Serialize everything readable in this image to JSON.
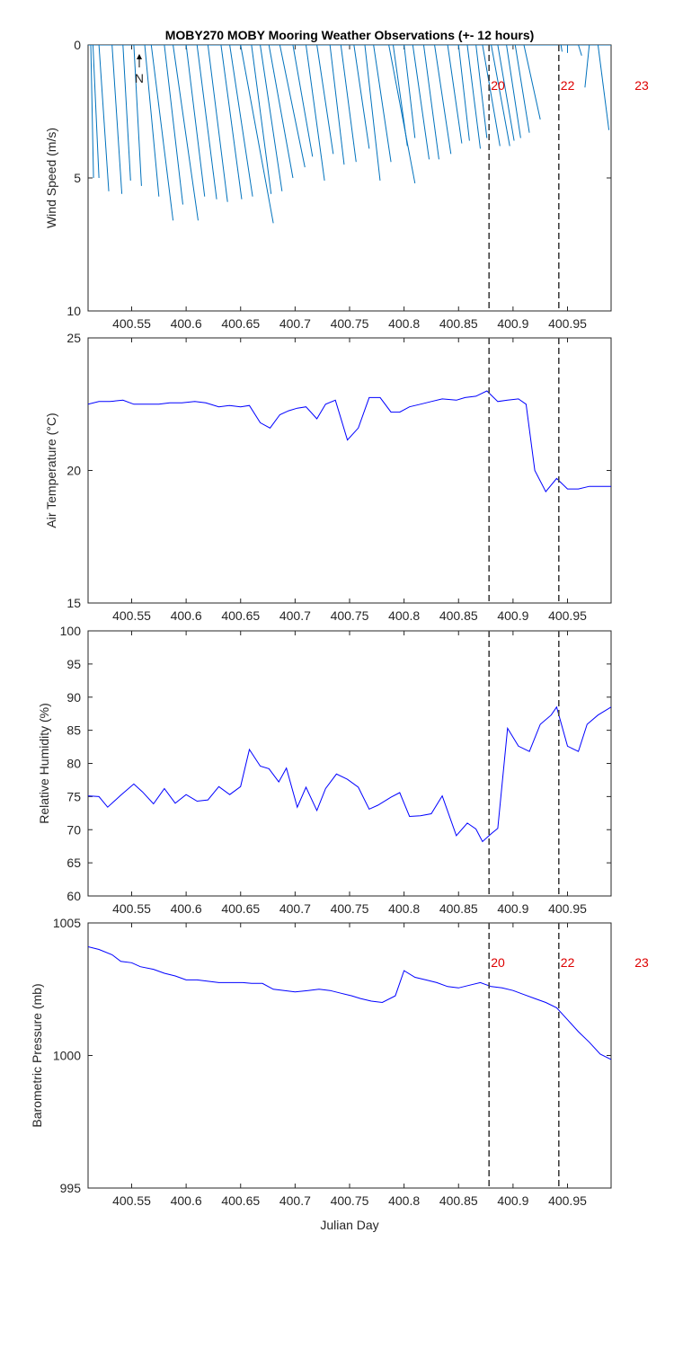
{
  "title": "MOBY270 MOBY Mooring Weather Observations (+- 12 hours)",
  "xlabel": "Julian Day",
  "north_label": "N",
  "colors": {
    "wind": "#0072bd",
    "line": "#0000ff",
    "marker": "#404040",
    "hour": "#dd0000"
  },
  "chart_data": [
    {
      "type": "line",
      "subtype": "wind-stick",
      "ylabel": "Wind Speed (m/s)",
      "ylim": [
        0,
        10
      ],
      "y_reversed": true,
      "xlim": [
        400.51,
        400.99
      ],
      "xticks": [
        400.55,
        400.6,
        400.65,
        400.7,
        400.75,
        400.8,
        400.85,
        400.9,
        400.95
      ],
      "yticks": [
        0,
        5,
        10
      ],
      "sticks": [
        {
          "x": 400.5125,
          "tip_x": 400.515,
          "tip_y": 5.0
        },
        {
          "x": 400.5145,
          "tip_x": 400.52,
          "tip_y": 5.0
        },
        {
          "x": 400.52,
          "tip_x": 400.529,
          "tip_y": 5.5
        },
        {
          "x": 400.532,
          "tip_x": 400.541,
          "tip_y": 5.6
        },
        {
          "x": 400.542,
          "tip_x": 400.549,
          "tip_y": 5.1
        },
        {
          "x": 400.552,
          "tip_x": 400.559,
          "tip_y": 5.3
        },
        {
          "x": 400.562,
          "tip_x": 400.575,
          "tip_y": 5.7
        },
        {
          "x": 400.568,
          "tip_x": 400.588,
          "tip_y": 6.6
        },
        {
          "x": 400.58,
          "tip_x": 400.597,
          "tip_y": 6.0
        },
        {
          "x": 400.588,
          "tip_x": 400.611,
          "tip_y": 6.6
        },
        {
          "x": 400.6,
          "tip_x": 400.617,
          "tip_y": 5.7
        },
        {
          "x": 400.61,
          "tip_x": 400.628,
          "tip_y": 5.8
        },
        {
          "x": 400.62,
          "tip_x": 400.638,
          "tip_y": 5.9
        },
        {
          "x": 400.632,
          "tip_x": 400.651,
          "tip_y": 5.8
        },
        {
          "x": 400.64,
          "tip_x": 400.661,
          "tip_y": 5.7
        },
        {
          "x": 400.65,
          "tip_x": 400.68,
          "tip_y": 6.7
        },
        {
          "x": 400.66,
          "tip_x": 400.678,
          "tip_y": 5.6
        },
        {
          "x": 400.668,
          "tip_x": 400.688,
          "tip_y": 5.5
        },
        {
          "x": 400.676,
          "tip_x": 400.698,
          "tip_y": 5.0
        },
        {
          "x": 400.686,
          "tip_x": 400.709,
          "tip_y": 4.6
        },
        {
          "x": 400.698,
          "tip_x": 400.716,
          "tip_y": 4.2
        },
        {
          "x": 400.71,
          "tip_x": 400.727,
          "tip_y": 5.1
        },
        {
          "x": 400.72,
          "tip_x": 400.735,
          "tip_y": 4.1
        },
        {
          "x": 400.732,
          "tip_x": 400.745,
          "tip_y": 4.5
        },
        {
          "x": 400.742,
          "tip_x": 400.756,
          "tip_y": 4.4
        },
        {
          "x": 400.754,
          "tip_x": 400.768,
          "tip_y": 3.9
        },
        {
          "x": 400.764,
          "tip_x": 400.778,
          "tip_y": 5.1
        },
        {
          "x": 400.772,
          "tip_x": 400.788,
          "tip_y": 4.4
        },
        {
          "x": 400.786,
          "tip_x": 400.81,
          "tip_y": 5.2
        },
        {
          "x": 400.79,
          "tip_x": 400.803,
          "tip_y": 3.8
        },
        {
          "x": 400.8,
          "tip_x": 400.81,
          "tip_y": 3.5
        },
        {
          "x": 400.808,
          "tip_x": 400.823,
          "tip_y": 4.3
        },
        {
          "x": 400.818,
          "tip_x": 400.832,
          "tip_y": 4.3
        },
        {
          "x": 400.828,
          "tip_x": 400.843,
          "tip_y": 4.1
        },
        {
          "x": 400.84,
          "tip_x": 400.853,
          "tip_y": 3.7
        },
        {
          "x": 400.85,
          "tip_x": 400.86,
          "tip_y": 3.6
        },
        {
          "x": 400.858,
          "tip_x": 400.87,
          "tip_y": 3.9
        },
        {
          "x": 400.866,
          "tip_x": 400.876,
          "tip_y": 3.5
        },
        {
          "x": 400.872,
          "tip_x": 400.888,
          "tip_y": 3.8
        },
        {
          "x": 400.88,
          "tip_x": 400.897,
          "tip_y": 3.8
        },
        {
          "x": 400.886,
          "tip_x": 400.901,
          "tip_y": 3.6
        },
        {
          "x": 400.894,
          "tip_x": 400.907,
          "tip_y": 3.5
        },
        {
          "x": 400.902,
          "tip_x": 400.915,
          "tip_y": 3.3
        },
        {
          "x": 400.91,
          "tip_x": 400.925,
          "tip_y": 2.8
        },
        {
          "x": 400.944,
          "tip_x": 400.945,
          "tip_y": 0.25
        },
        {
          "x": 400.95,
          "tip_x": 400.95,
          "tip_y": 0.3
        },
        {
          "x": 400.96,
          "tip_x": 400.963,
          "tip_y": 0.4
        },
        {
          "x": 400.97,
          "tip_x": 400.966,
          "tip_y": 1.6
        },
        {
          "x": 400.978,
          "tip_x": 400.988,
          "tip_y": 3.2
        }
      ],
      "north_arrow_x": 400.557,
      "markers": [
        400.878,
        400.942
      ],
      "hour_labels": [
        {
          "x": 400.878,
          "text": "20"
        },
        {
          "x": 400.942,
          "text": "22"
        },
        {
          "x": 401.01,
          "text": "23"
        }
      ]
    },
    {
      "type": "line",
      "ylabel": "Air Temperature (°C)",
      "ylim": [
        15,
        25
      ],
      "y_reversed": false,
      "xlim": [
        400.51,
        400.99
      ],
      "xticks": [
        400.55,
        400.6,
        400.65,
        400.7,
        400.75,
        400.8,
        400.85,
        400.9,
        400.95
      ],
      "yticks": [
        15,
        20,
        25
      ],
      "x": [
        400.51,
        400.52,
        400.53,
        400.542,
        400.552,
        400.564,
        400.575,
        400.585,
        400.596,
        400.608,
        400.618,
        400.63,
        400.64,
        400.65,
        400.658,
        400.668,
        400.677,
        400.686,
        400.694,
        400.702,
        400.71,
        400.72,
        400.728,
        400.737,
        400.748,
        400.758,
        400.768,
        400.778,
        400.788,
        400.796,
        400.805,
        400.815,
        400.825,
        400.835,
        400.848,
        400.856,
        400.866,
        400.876,
        400.886,
        400.895,
        400.905,
        400.912,
        400.92,
        400.93,
        400.94,
        400.95,
        400.96,
        400.97,
        400.98,
        400.99
      ],
      "y": [
        22.5,
        22.6,
        22.6,
        22.65,
        22.5,
        22.5,
        22.5,
        22.55,
        22.55,
        22.6,
        22.55,
        22.4,
        22.45,
        22.4,
        22.45,
        21.8,
        21.6,
        22.1,
        22.25,
        22.35,
        22.4,
        21.95,
        22.5,
        22.65,
        21.15,
        21.6,
        22.75,
        22.75,
        22.2,
        22.2,
        22.4,
        22.5,
        22.6,
        22.7,
        22.65,
        22.75,
        22.8,
        23.0,
        22.6,
        22.65,
        22.7,
        22.5,
        20.0,
        19.2,
        19.7,
        19.3,
        19.3,
        19.4,
        19.4,
        19.4
      ],
      "markers": [
        400.878,
        400.942
      ]
    },
    {
      "type": "line",
      "ylabel": "Relative Humidity (%)",
      "ylim": [
        60,
        100
      ],
      "y_reversed": false,
      "xlim": [
        400.51,
        400.99
      ],
      "xticks": [
        400.55,
        400.6,
        400.65,
        400.7,
        400.75,
        400.8,
        400.85,
        400.9,
        400.95
      ],
      "yticks": [
        60,
        65,
        70,
        75,
        80,
        85,
        90,
        95,
        100
      ],
      "x": [
        400.51,
        400.52,
        400.528,
        400.54,
        400.552,
        400.56,
        400.57,
        400.58,
        400.59,
        400.6,
        400.61,
        400.62,
        400.63,
        400.64,
        400.65,
        400.658,
        400.668,
        400.676,
        400.685,
        400.692,
        400.702,
        400.71,
        400.72,
        400.728,
        400.738,
        400.748,
        400.758,
        400.768,
        400.776,
        400.788,
        400.796,
        400.805,
        400.815,
        400.825,
        400.835,
        400.848,
        400.858,
        400.866,
        400.872,
        400.88,
        400.886,
        400.895,
        400.905,
        400.915,
        400.925,
        400.935,
        400.94,
        400.95,
        400.96,
        400.968,
        400.978,
        400.99
      ],
      "y": [
        75.1,
        75.0,
        73.4,
        75.2,
        76.9,
        75.7,
        73.9,
        76.2,
        74.0,
        75.3,
        74.3,
        74.5,
        76.5,
        75.3,
        76.5,
        82.1,
        79.6,
        79.2,
        77.2,
        79.3,
        73.4,
        76.4,
        72.9,
        76.2,
        78.4,
        77.6,
        76.4,
        73.1,
        73.7,
        74.9,
        75.6,
        72.0,
        72.1,
        72.4,
        75.1,
        69.1,
        71.0,
        70.1,
        68.2,
        69.4,
        70.2,
        85.3,
        82.6,
        81.8,
        85.9,
        87.3,
        88.5,
        82.6,
        81.8,
        85.9,
        87.3,
        88.5
      ],
      "markers": [
        400.878,
        400.942
      ]
    },
    {
      "type": "line",
      "ylabel": "Barometric Pressure (mb)",
      "ylim": [
        995,
        1005
      ],
      "y_reversed": false,
      "xlim": [
        400.51,
        400.99
      ],
      "xticks": [
        400.55,
        400.6,
        400.65,
        400.7,
        400.75,
        400.8,
        400.85,
        400.9,
        400.95
      ],
      "yticks": [
        995,
        1000,
        1005
      ],
      "x": [
        400.51,
        400.52,
        400.532,
        400.54,
        400.55,
        400.558,
        400.57,
        400.58,
        400.59,
        400.6,
        400.61,
        400.62,
        400.63,
        400.64,
        400.652,
        400.66,
        400.67,
        400.68,
        400.69,
        400.7,
        400.712,
        400.722,
        400.732,
        400.742,
        400.752,
        400.76,
        400.77,
        400.78,
        400.792,
        400.8,
        400.81,
        400.82,
        400.83,
        400.84,
        400.85,
        400.86,
        400.87,
        400.88,
        400.89,
        400.9,
        400.91,
        400.92,
        400.93,
        400.94,
        400.95,
        400.96,
        400.97,
        400.98,
        400.99
      ],
      "y": [
        1004.1,
        1004.0,
        1003.8,
        1003.55,
        1003.5,
        1003.35,
        1003.25,
        1003.1,
        1003.0,
        1002.85,
        1002.85,
        1002.8,
        1002.75,
        1002.75,
        1002.75,
        1002.72,
        1002.72,
        1002.5,
        1002.45,
        1002.4,
        1002.45,
        1002.5,
        1002.45,
        1002.35,
        1002.25,
        1002.15,
        1002.05,
        1002.0,
        1002.25,
        1003.2,
        1002.95,
        1002.85,
        1002.75,
        1002.6,
        1002.55,
        1002.65,
        1002.75,
        1002.6,
        1002.55,
        1002.45,
        1002.3,
        1002.15,
        1002.0,
        1001.8,
        1001.35,
        1000.9,
        1000.5,
        1000.05,
        999.85
      ],
      "markers": [
        400.878,
        400.942
      ],
      "hour_labels": [
        {
          "x": 400.878,
          "text": "20"
        },
        {
          "x": 400.942,
          "text": "22"
        },
        {
          "x": 401.01,
          "text": "23"
        }
      ]
    }
  ]
}
